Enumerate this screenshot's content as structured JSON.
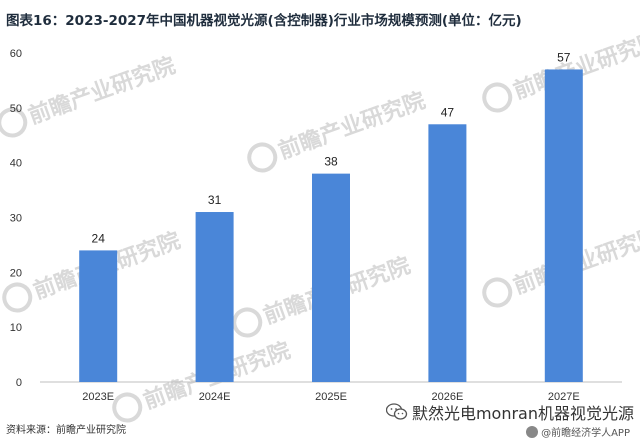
{
  "chart_data": {
    "type": "bar",
    "title": "图表16：2023-2027年中国机器视觉光源(含控制器)行业市场规模预测(单位：亿元)",
    "categories": [
      "2023E",
      "2024E",
      "2025E",
      "2026E",
      "2027E"
    ],
    "values": [
      24,
      31,
      38,
      47,
      57
    ],
    "data_labels": [
      "24",
      "31",
      "38",
      "47",
      "57"
    ],
    "ylim": [
      0,
      60
    ],
    "yticks": [
      "0",
      "10",
      "20",
      "30",
      "40",
      "50",
      "60"
    ],
    "bar_color": "#4a86d8",
    "grid": false,
    "legend": "none"
  },
  "watermark": {
    "text": "前瞻产业研究院",
    "icon": "qianzhan-logo-icon",
    "color": "#d9d9d9"
  },
  "footer": {
    "source": "资料来源：前瞻产业研究院",
    "brand": "默然光电monran机器视觉光源",
    "brand_icon": "wechat-icon",
    "app": "@前瞻经济学人APP",
    "app_icon": "qianzhan-app-icon"
  }
}
